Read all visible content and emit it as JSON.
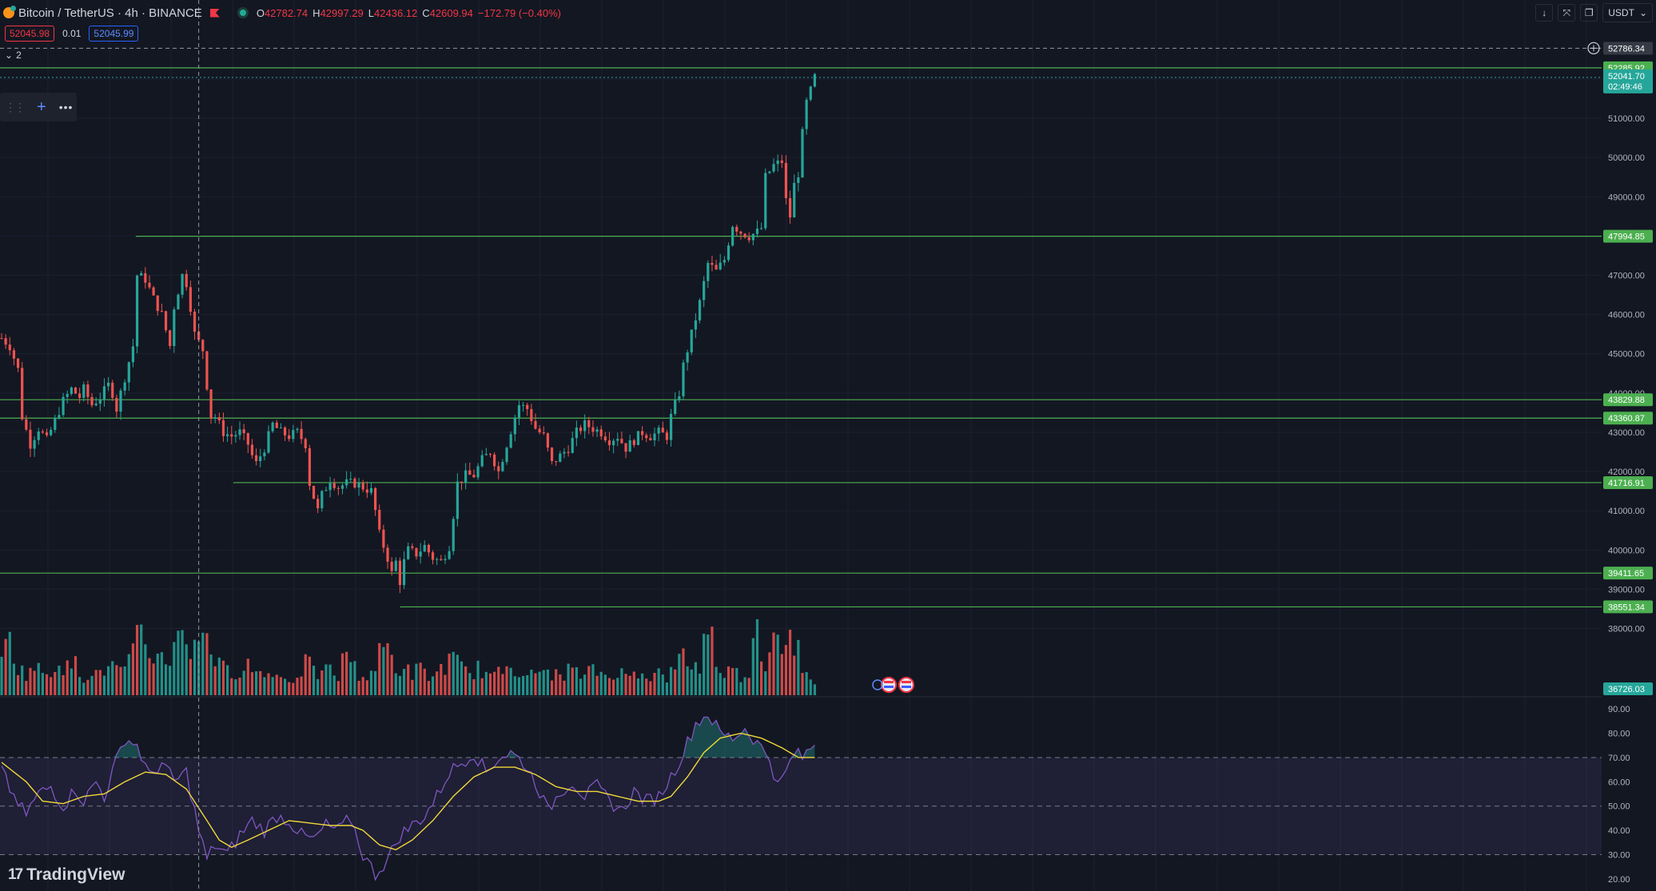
{
  "header": {
    "title": "Bitcoin / TetherUS · 4h · BINANCE",
    "o_label": "O",
    "o": "42782.74",
    "h_label": "H",
    "h": "42997.29",
    "l_label": "L",
    "l": "42436.12",
    "c_label": "C",
    "c": "42609.94",
    "change": "−172.79 (−0.40%)"
  },
  "trade": {
    "sell": "52045.98",
    "spread": "0.01",
    "buy": "52045.99"
  },
  "collapse_count": "2",
  "currency": "USDT",
  "brand": "TradingView",
  "colors": {
    "background": "#131722",
    "up": "#26a69a",
    "down": "#ef5350",
    "level": "#4caf50",
    "rsi": "#7e57c2",
    "rsi_ma": "#f1d83b"
  },
  "chart_data": {
    "type": "candlestick",
    "symbol": "BTCUSDT",
    "interval": "4h",
    "price_ylim": [
      36300,
      53200
    ],
    "price_ticks": [
      "52000.00",
      "51000.00",
      "50000.00",
      "49000.00",
      "48000.00",
      "47000.00",
      "46000.00",
      "45000.00",
      "44000.00",
      "43000.00",
      "42000.00",
      "41000.00",
      "40000.00",
      "39000.00",
      "38000.00"
    ],
    "crosshair_price": "52786.34",
    "last_high": "52285.92",
    "current_price": "52041.70",
    "countdown": "02:49:46",
    "low_label": "36726.03",
    "levels": [
      {
        "price": 52285.92,
        "label": "52285.92",
        "from": 0
      },
      {
        "price": 47994.85,
        "label": "47994.85",
        "from": 0.085
      },
      {
        "price": 43829.88,
        "label": "43829.88",
        "from": 0
      },
      {
        "price": 43360.87,
        "label": "43360.87",
        "from": 0
      },
      {
        "price": 41716.91,
        "label": "41716.91",
        "from": 0.146
      },
      {
        "price": 39411.65,
        "label": "39411.65",
        "from": 0
      },
      {
        "price": 38551.34,
        "label": "38551.34",
        "from": 0.25
      }
    ],
    "close_path": [
      [
        0,
        45400
      ],
      [
        2,
        45200
      ],
      [
        4,
        44600
      ],
      [
        5,
        43400
      ],
      [
        7,
        42700
      ],
      [
        9,
        43100
      ],
      [
        11,
        42800
      ],
      [
        13,
        43300
      ],
      [
        15,
        43800
      ],
      [
        17,
        44100
      ],
      [
        19,
        43900
      ],
      [
        20,
        44100
      ],
      [
        22,
        43700
      ],
      [
        24,
        43900
      ],
      [
        26,
        44200
      ],
      [
        27,
        44000
      ],
      [
        28,
        43600
      ],
      [
        30,
        44400
      ],
      [
        32,
        45200
      ],
      [
        33,
        47000
      ],
      [
        35,
        46900
      ],
      [
        37,
        46400
      ],
      [
        39,
        46000
      ],
      [
        40,
        45600
      ],
      [
        41,
        45200
      ],
      [
        42,
        46200
      ],
      [
        44,
        47000
      ],
      [
        45,
        46800
      ],
      [
        46,
        46200
      ],
      [
        47,
        45500
      ],
      [
        49,
        45100
      ],
      [
        50,
        44200
      ],
      [
        51,
        43400
      ],
      [
        52,
        43400
      ],
      [
        54,
        43000
      ],
      [
        56,
        42900
      ],
      [
        58,
        43000
      ],
      [
        60,
        42700
      ],
      [
        61,
        42400
      ],
      [
        62,
        42200
      ],
      [
        64,
        42600
      ],
      [
        66,
        43200
      ],
      [
        68,
        43000
      ],
      [
        70,
        42900
      ],
      [
        72,
        43000
      ],
      [
        74,
        42700
      ],
      [
        75,
        41700
      ],
      [
        77,
        41000
      ],
      [
        78,
        41400
      ],
      [
        80,
        41800
      ],
      [
        82,
        41600
      ],
      [
        84,
        41700
      ],
      [
        86,
        41700
      ],
      [
        88,
        41600
      ],
      [
        90,
        41500
      ],
      [
        91,
        41000
      ],
      [
        92,
        40400
      ],
      [
        94,
        39800
      ],
      [
        95,
        39400
      ],
      [
        96,
        39700
      ],
      [
        97,
        39200
      ],
      [
        98,
        39700
      ],
      [
        99,
        40000
      ],
      [
        101,
        39900
      ],
      [
        103,
        40100
      ],
      [
        105,
        39800
      ],
      [
        107,
        39700
      ],
      [
        109,
        40100
      ],
      [
        110,
        40900
      ],
      [
        111,
        41700
      ],
      [
        113,
        41900
      ],
      [
        115,
        41900
      ],
      [
        117,
        42300
      ],
      [
        119,
        42500
      ],
      [
        121,
        42000
      ],
      [
        123,
        42700
      ],
      [
        125,
        43400
      ],
      [
        126,
        43700
      ],
      [
        128,
        43600
      ],
      [
        130,
        43100
      ],
      [
        132,
        42900
      ],
      [
        134,
        42200
      ],
      [
        136,
        42400
      ],
      [
        138,
        42600
      ],
      [
        140,
        43000
      ],
      [
        142,
        43200
      ],
      [
        144,
        43100
      ],
      [
        146,
        43000
      ],
      [
        148,
        42800
      ],
      [
        150,
        42900
      ],
      [
        152,
        42600
      ],
      [
        154,
        42800
      ],
      [
        156,
        43000
      ],
      [
        158,
        42900
      ],
      [
        160,
        43000
      ],
      [
        162,
        42900
      ],
      [
        163,
        43400
      ],
      [
        165,
        44000
      ],
      [
        166,
        44700
      ],
      [
        168,
        45500
      ],
      [
        170,
        46300
      ],
      [
        172,
        47300
      ],
      [
        174,
        47100
      ],
      [
        176,
        47400
      ],
      [
        178,
        48300
      ],
      [
        180,
        48100
      ],
      [
        182,
        48000
      ],
      [
        184,
        48100
      ],
      [
        185,
        48200
      ],
      [
        186,
        49500
      ],
      [
        188,
        49800
      ],
      [
        190,
        49900
      ],
      [
        191,
        48900
      ],
      [
        192,
        48500
      ],
      [
        193,
        49300
      ],
      [
        194,
        49600
      ],
      [
        195,
        50600
      ],
      [
        196,
        51400
      ],
      [
        197,
        51700
      ],
      [
        198,
        52050
      ]
    ],
    "volume_scale": [
      0,
      1
    ],
    "volume": [
      [
        0,
        0.35
      ],
      [
        2,
        0.7
      ],
      [
        4,
        0.3
      ],
      [
        6,
        0.25
      ],
      [
        8,
        0.32
      ],
      [
        10,
        0.25
      ],
      [
        12,
        0.28
      ],
      [
        14,
        0.4
      ],
      [
        16,
        0.3
      ],
      [
        18,
        0.35
      ],
      [
        20,
        0.2
      ],
      [
        22,
        0.3
      ],
      [
        24,
        0.22
      ],
      [
        26,
        0.35
      ],
      [
        28,
        0.3
      ],
      [
        30,
        0.25
      ],
      [
        32,
        0.45
      ],
      [
        34,
        0.9
      ],
      [
        36,
        0.4
      ],
      [
        38,
        0.55
      ],
      [
        40,
        0.3
      ],
      [
        42,
        0.6
      ],
      [
        44,
        0.95
      ],
      [
        46,
        0.4
      ],
      [
        48,
        0.65
      ],
      [
        50,
        0.85
      ],
      [
        52,
        0.35
      ],
      [
        54,
        0.3
      ],
      [
        56,
        0.25
      ],
      [
        58,
        0.3
      ],
      [
        60,
        0.35
      ],
      [
        62,
        0.25
      ],
      [
        64,
        0.3
      ],
      [
        66,
        0.2
      ],
      [
        68,
        0.25
      ],
      [
        70,
        0.2
      ],
      [
        72,
        0.15
      ],
      [
        74,
        0.4
      ],
      [
        76,
        0.25
      ],
      [
        78,
        0.25
      ],
      [
        80,
        0.3
      ],
      [
        82,
        0.2
      ],
      [
        84,
        0.55
      ],
      [
        86,
        0.3
      ],
      [
        88,
        0.2
      ],
      [
        90,
        0.25
      ],
      [
        92,
        0.45
      ],
      [
        94,
        0.55
      ],
      [
        96,
        0.3
      ],
      [
        98,
        0.3
      ],
      [
        100,
        0.25
      ],
      [
        102,
        0.3
      ],
      [
        104,
        0.2
      ],
      [
        106,
        0.25
      ],
      [
        108,
        0.35
      ],
      [
        110,
        0.4
      ],
      [
        112,
        0.3
      ],
      [
        114,
        0.25
      ],
      [
        116,
        0.3
      ],
      [
        118,
        0.25
      ],
      [
        120,
        0.2
      ],
      [
        122,
        0.3
      ],
      [
        124,
        0.35
      ],
      [
        126,
        0.3
      ],
      [
        128,
        0.25
      ],
      [
        130,
        0.2
      ],
      [
        132,
        0.3
      ],
      [
        134,
        0.25
      ],
      [
        136,
        0.2
      ],
      [
        138,
        0.3
      ],
      [
        140,
        0.25
      ],
      [
        142,
        0.2
      ],
      [
        144,
        0.3
      ],
      [
        146,
        0.25
      ],
      [
        148,
        0.2
      ],
      [
        150,
        0.3
      ],
      [
        152,
        0.2
      ],
      [
        154,
        0.25
      ],
      [
        156,
        0.3
      ],
      [
        158,
        0.2
      ],
      [
        160,
        0.25
      ],
      [
        162,
        0.2
      ],
      [
        164,
        0.3
      ],
      [
        166,
        0.45
      ],
      [
        168,
        0.35
      ],
      [
        170,
        0.3
      ],
      [
        172,
        0.95
      ],
      [
        174,
        0.35
      ],
      [
        176,
        0.25
      ],
      [
        178,
        0.3
      ],
      [
        180,
        0.2
      ],
      [
        182,
        0.3
      ],
      [
        184,
        0.75
      ],
      [
        186,
        0.35
      ],
      [
        188,
        0.8
      ],
      [
        190,
        0.55
      ],
      [
        192,
        0.95
      ],
      [
        193,
        0.65
      ],
      [
        194,
        0.5
      ],
      [
        195,
        0.25
      ],
      [
        196,
        0.2
      ],
      [
        197,
        0.15
      ],
      [
        198,
        0.1
      ]
    ],
    "rsi": {
      "ylim": [
        15,
        95
      ],
      "ticks": [
        "90.00",
        "80.00",
        "70.00",
        "60.00",
        "50.00",
        "40.00",
        "30.00",
        "20.00"
      ],
      "bands": [
        70,
        50,
        30
      ],
      "values": [
        [
          0,
          68
        ],
        [
          3,
          52
        ],
        [
          6,
          47
        ],
        [
          9,
          55
        ],
        [
          12,
          58
        ],
        [
          15,
          50
        ],
        [
          18,
          57
        ],
        [
          20,
          52
        ],
        [
          23,
          60
        ],
        [
          25,
          54
        ],
        [
          27,
          64
        ],
        [
          30,
          78
        ],
        [
          33,
          75
        ],
        [
          36,
          62
        ],
        [
          39,
          68
        ],
        [
          42,
          60
        ],
        [
          45,
          64
        ],
        [
          48,
          40
        ],
        [
          50,
          28
        ],
        [
          52,
          34
        ],
        [
          55,
          30
        ],
        [
          58,
          38
        ],
        [
          61,
          44
        ],
        [
          64,
          40
        ],
        [
          67,
          46
        ],
        [
          70,
          44
        ],
        [
          73,
          38
        ],
        [
          76,
          36
        ],
        [
          79,
          42
        ],
        [
          82,
          40
        ],
        [
          85,
          45
        ],
        [
          88,
          30
        ],
        [
          91,
          22
        ],
        [
          94,
          28
        ],
        [
          97,
          38
        ],
        [
          100,
          42
        ],
        [
          103,
          46
        ],
        [
          106,
          54
        ],
        [
          109,
          64
        ],
        [
          112,
          68
        ],
        [
          115,
          72
        ],
        [
          118,
          64
        ],
        [
          121,
          70
        ],
        [
          124,
          72
        ],
        [
          127,
          68
        ],
        [
          130,
          60
        ],
        [
          133,
          48
        ],
        [
          136,
          56
        ],
        [
          139,
          60
        ],
        [
          142,
          54
        ],
        [
          145,
          58
        ],
        [
          148,
          52
        ],
        [
          151,
          48
        ],
        [
          154,
          56
        ],
        [
          157,
          52
        ],
        [
          160,
          54
        ],
        [
          163,
          62
        ],
        [
          166,
          72
        ],
        [
          169,
          84
        ],
        [
          172,
          88
        ],
        [
          175,
          80
        ],
        [
          178,
          78
        ],
        [
          181,
          82
        ],
        [
          184,
          76
        ],
        [
          187,
          70
        ],
        [
          189,
          58
        ],
        [
          191,
          64
        ],
        [
          193,
          72
        ],
        [
          195,
          70
        ],
        [
          197,
          74
        ],
        [
          198,
          76
        ]
      ],
      "ma": [
        [
          0,
          68
        ],
        [
          6,
          60
        ],
        [
          10,
          52
        ],
        [
          15,
          51
        ],
        [
          20,
          54
        ],
        [
          25,
          55
        ],
        [
          30,
          60
        ],
        [
          35,
          64
        ],
        [
          40,
          63
        ],
        [
          45,
          57
        ],
        [
          50,
          44
        ],
        [
          53,
          36
        ],
        [
          56,
          33
        ],
        [
          60,
          36
        ],
        [
          65,
          40
        ],
        [
          70,
          44
        ],
        [
          75,
          43
        ],
        [
          80,
          42
        ],
        [
          85,
          42
        ],
        [
          88,
          40
        ],
        [
          92,
          34
        ],
        [
          96,
          32
        ],
        [
          100,
          36
        ],
        [
          105,
          44
        ],
        [
          110,
          54
        ],
        [
          115,
          62
        ],
        [
          120,
          66
        ],
        [
          125,
          66
        ],
        [
          130,
          63
        ],
        [
          135,
          58
        ],
        [
          140,
          56
        ],
        [
          145,
          56
        ],
        [
          150,
          54
        ],
        [
          155,
          52
        ],
        [
          160,
          52
        ],
        [
          163,
          54
        ],
        [
          167,
          62
        ],
        [
          171,
          72
        ],
        [
          175,
          78
        ],
        [
          180,
          80
        ],
        [
          185,
          78
        ],
        [
          190,
          74
        ],
        [
          194,
          70
        ],
        [
          198,
          70
        ]
      ]
    },
    "crosshair_index": 48,
    "x_range": [
      0,
      390
    ]
  }
}
